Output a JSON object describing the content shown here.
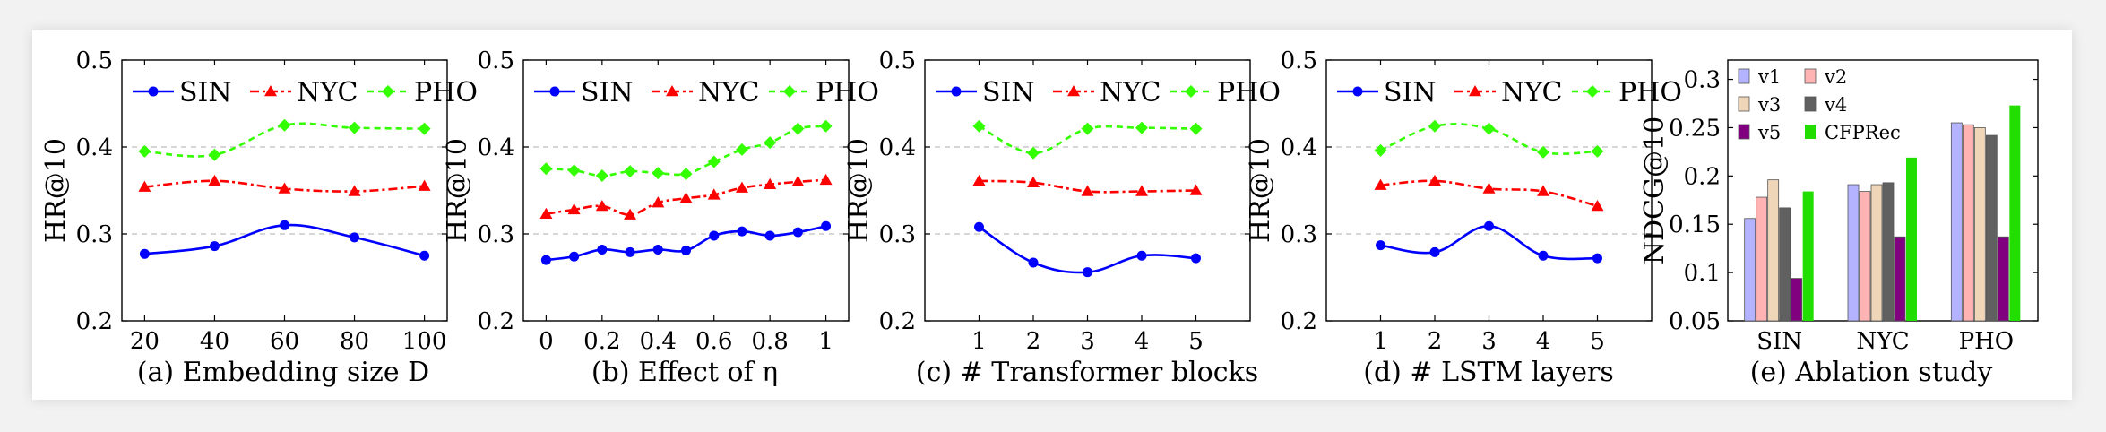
{
  "colors": {
    "SIN": "#0000ff",
    "NYC": "#ff0000",
    "PHO": "#33ff00"
  },
  "chart_data": [
    {
      "type": "line",
      "caption": "(a) Embedding size D",
      "ylabel": "HR@10",
      "x": [
        20,
        40,
        60,
        80,
        100
      ],
      "xticks": [
        "20",
        "40",
        "60",
        "80",
        "100"
      ],
      "ylim": [
        0.2,
        0.5
      ],
      "yticks": [
        "0.2",
        "0.3",
        "0.4",
        "0.5"
      ],
      "grid": "horizontal dashed",
      "legend": "top",
      "series": [
        {
          "name": "SIN",
          "values": [
            0.277,
            0.286,
            0.31,
            0.296,
            0.275
          ]
        },
        {
          "name": "NYC",
          "values": [
            0.354,
            0.361,
            0.352,
            0.349,
            0.355
          ]
        },
        {
          "name": "PHO",
          "values": [
            0.395,
            0.391,
            0.425,
            0.422,
            0.421
          ]
        }
      ]
    },
    {
      "type": "line",
      "caption": "(b) Effect of η",
      "ylabel": "HR@10",
      "x": [
        0,
        0.1,
        0.2,
        0.3,
        0.4,
        0.5,
        0.6,
        0.7,
        0.8,
        0.9,
        1
      ],
      "xticks": [
        "0",
        "0.2",
        "0.4",
        "0.6",
        "0.8",
        "1"
      ],
      "ylim": [
        0.2,
        0.5
      ],
      "yticks": [
        "0.2",
        "0.3",
        "0.4",
        "0.5"
      ],
      "grid": "horizontal dashed",
      "legend": "top",
      "series": [
        {
          "name": "SIN",
          "values": [
            0.27,
            0.274,
            0.282,
            0.279,
            0.282,
            0.281,
            0.298,
            0.303,
            0.298,
            0.302,
            0.309
          ]
        },
        {
          "name": "NYC",
          "values": [
            0.323,
            0.328,
            0.332,
            0.322,
            0.336,
            0.341,
            0.345,
            0.353,
            0.357,
            0.36,
            0.362
          ]
        },
        {
          "name": "PHO",
          "values": [
            0.375,
            0.373,
            0.367,
            0.372,
            0.37,
            0.369,
            0.383,
            0.397,
            0.405,
            0.421,
            0.424
          ]
        }
      ]
    },
    {
      "type": "line",
      "caption": "(c) # Transformer blocks",
      "ylabel": "HR@10",
      "x": [
        1,
        2,
        3,
        4,
        5
      ],
      "xticks": [
        "1",
        "2",
        "3",
        "4",
        "5"
      ],
      "xlim": [
        0,
        6
      ],
      "ylim": [
        0.2,
        0.5
      ],
      "yticks": [
        "0.2",
        "0.3",
        "0.4",
        "0.5"
      ],
      "grid": "horizontal dashed",
      "legend": "top",
      "series": [
        {
          "name": "SIN",
          "values": [
            0.308,
            0.267,
            0.256,
            0.275,
            0.272
          ]
        },
        {
          "name": "NYC",
          "values": [
            0.361,
            0.359,
            0.349,
            0.349,
            0.35
          ]
        },
        {
          "name": "PHO",
          "values": [
            0.424,
            0.393,
            0.421,
            0.422,
            0.421
          ]
        }
      ]
    },
    {
      "type": "line",
      "caption": "(d) # LSTM layers",
      "ylabel": "HR@10",
      "x": [
        1,
        2,
        3,
        4,
        5
      ],
      "xticks": [
        "1",
        "2",
        "3",
        "4",
        "5"
      ],
      "xlim": [
        0,
        6
      ],
      "ylim": [
        0.2,
        0.5
      ],
      "yticks": [
        "0.2",
        "0.3",
        "0.4",
        "0.5"
      ],
      "grid": "horizontal dashed",
      "legend": "top",
      "series": [
        {
          "name": "SIN",
          "values": [
            0.287,
            0.279,
            0.309,
            0.275,
            0.272
          ]
        },
        {
          "name": "NYC",
          "values": [
            0.356,
            0.361,
            0.352,
            0.349,
            0.332
          ]
        },
        {
          "name": "PHO",
          "values": [
            0.396,
            0.424,
            0.421,
            0.394,
            0.395
          ]
        }
      ]
    },
    {
      "type": "bar",
      "caption": "(e) Ablation study",
      "ylabel": "NDCG@10",
      "categories": [
        "SIN",
        "NYC",
        "PHO"
      ],
      "ylim": [
        0.05,
        0.32
      ],
      "yticks": [
        "0.05",
        "0.1",
        "0.15",
        "0.2",
        "0.25",
        "0.3"
      ],
      "legend": "top-left",
      "series": [
        {
          "name": "v1",
          "color": "#b3b3ff",
          "values": [
            0.156,
            0.191,
            0.255
          ]
        },
        {
          "name": "v2",
          "color": "#ffb3b3",
          "values": [
            0.178,
            0.184,
            0.253
          ]
        },
        {
          "name": "v3",
          "color": "#f0d6b8",
          "values": [
            0.196,
            0.191,
            0.25
          ]
        },
        {
          "name": "v4",
          "color": "#606060",
          "values": [
            0.167,
            0.193,
            0.242
          ]
        },
        {
          "name": "v5",
          "color": "#800080",
          "values": [
            0.094,
            0.137,
            0.137
          ]
        },
        {
          "name": "CFPRec",
          "color": "#22dd00",
          "values": [
            0.184,
            0.219,
            0.273
          ]
        }
      ]
    }
  ]
}
